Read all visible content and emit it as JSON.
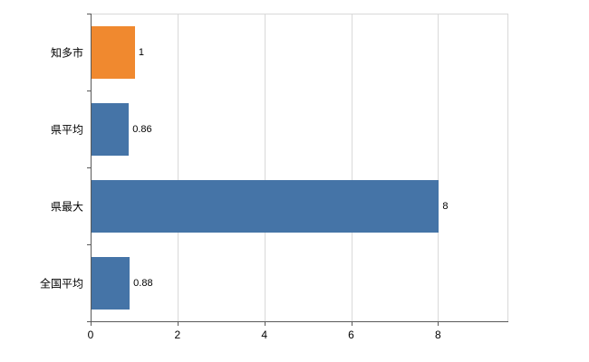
{
  "chart_data": {
    "type": "bar",
    "orientation": "horizontal",
    "title": "",
    "xlabel": "",
    "ylabel": "",
    "categories": [
      "知多市",
      "県平均",
      "県最大",
      "全国平均"
    ],
    "values": [
      1,
      0.86,
      8,
      0.88
    ],
    "value_labels": [
      "1",
      "0.86",
      "8",
      "0.88"
    ],
    "bar_colors": [
      "#f0892f",
      "#4574a7",
      "#4574a7",
      "#4574a7"
    ],
    "xlim": [
      0,
      9.6
    ],
    "xticks": [
      0,
      2,
      4,
      6,
      8
    ],
    "xtick_labels": [
      "0",
      "2",
      "4",
      "6",
      "8"
    ],
    "grid": "vertical",
    "legend": "none",
    "background_color": "#ffffff",
    "gridline_color": "#d9d9d9",
    "axis_color": "#595959"
  }
}
